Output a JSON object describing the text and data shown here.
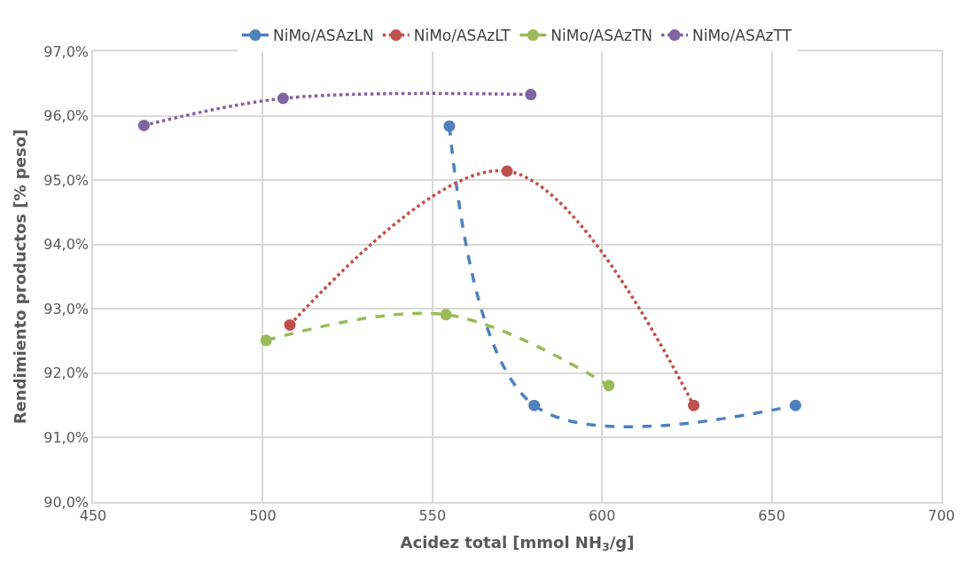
{
  "chart_data": {
    "type": "line",
    "xlabel": "Acidez total [mmol NH$_{3}$/g]",
    "ylabel": "Rendimiento productos [% peso]",
    "xlim": [
      450,
      700
    ],
    "xticks": [
      450,
      500,
      550,
      600,
      650,
      700
    ],
    "ylim": [
      90,
      97
    ],
    "yticks": [
      {
        "value": 90,
        "label": "90,0%"
      },
      {
        "value": 91,
        "label": "91,0%"
      },
      {
        "value": 92,
        "label": "92,0%"
      },
      {
        "value": 93,
        "label": "93,0%"
      },
      {
        "value": 94,
        "label": "94,0%"
      },
      {
        "value": 95,
        "label": "95,0%"
      },
      {
        "value": 96,
        "label": "96,0%"
      },
      {
        "value": 97,
        "label": "97,0%"
      }
    ],
    "grid": true,
    "legend": "top",
    "marker": "circle",
    "series": [
      {
        "name": "NiMo/ASAzLN",
        "color": "#4f81bd",
        "line_style": "dashed",
        "x": [
          555,
          580,
          657
        ],
        "values": [
          95.84,
          91.5,
          91.5
        ]
      },
      {
        "name": "NiMo/ASAzLT",
        "color": "#c0504d",
        "line_style": "dotted",
        "x": [
          508,
          572,
          627
        ],
        "values": [
          92.75,
          95.14,
          91.5
        ]
      },
      {
        "name": "NiMo/ASAzTN",
        "color": "#9bbb59",
        "line_style": "dashed",
        "x": [
          501,
          554,
          602
        ],
        "values": [
          92.51,
          92.91,
          91.81
        ]
      },
      {
        "name": "NiMo/ASAzTT",
        "color": "#8064a2",
        "line_style": "dotted",
        "x": [
          465,
          506,
          579
        ],
        "values": [
          95.85,
          96.27,
          96.33
        ]
      }
    ]
  }
}
